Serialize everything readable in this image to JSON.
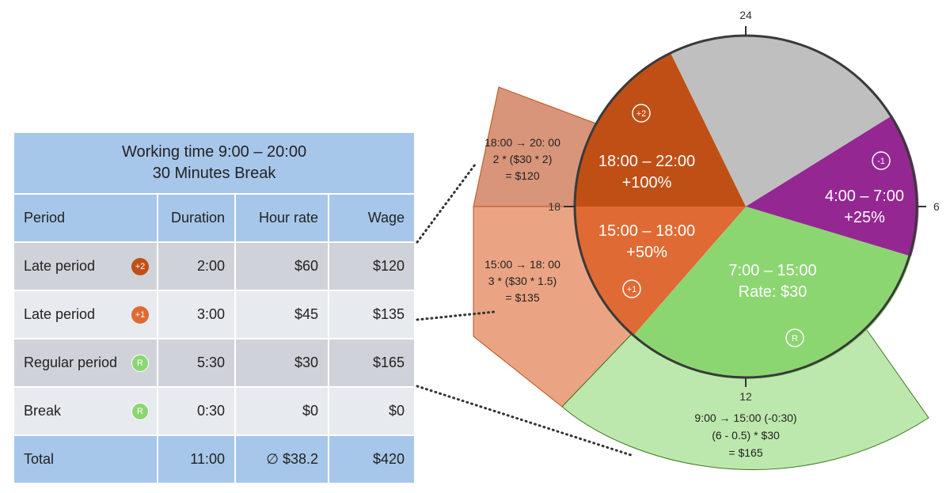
{
  "table": {
    "title_line1": "Working time 9:00 – 20:00",
    "title_line2": "30 Minutes Break",
    "headers": {
      "period": "Period",
      "duration": "Duration",
      "rate": "Hour rate",
      "wage": "Wage"
    },
    "rows": [
      {
        "period": "Late period",
        "badge": "+2",
        "duration": "2:00",
        "rate": "$60",
        "wage": "$120"
      },
      {
        "period": "Late period",
        "badge": "+1",
        "duration": "3:00",
        "rate": "$45",
        "wage": "$135"
      },
      {
        "period": "Regular period",
        "badge": "R",
        "duration": "5:30",
        "rate": "$30",
        "wage": "$165"
      },
      {
        "period": "Break",
        "badge": "R",
        "duration": "0:30",
        "rate": "$0",
        "wage": "$0"
      }
    ],
    "total": {
      "label": "Total",
      "duration": "11:00",
      "rate": "∅ $38.2",
      "wage": "$420"
    }
  },
  "clock": {
    "ticks": {
      "top": "24",
      "right": "6",
      "bottom": "12",
      "left": "18"
    },
    "segments": {
      "late2": {
        "line1": "18:00 – 22:00",
        "line2": "+100%",
        "badge": "+2"
      },
      "late1": {
        "line1": "15:00 – 18:00",
        "line2": "+50%",
        "badge": "+1"
      },
      "regular": {
        "line1": "7:00 – 15:00",
        "line2": "Rate: $30",
        "badge": "R"
      },
      "early": {
        "line1": "4:00 – 7:00",
        "line2": "+25%",
        "badge": "-1"
      }
    },
    "callouts": {
      "late2": {
        "line1": "18:00 → 20: 00",
        "line2": "2 * ($30 * 2)",
        "line3": "= $120"
      },
      "late1": {
        "line1": "15:00 → 18: 00",
        "line2": "3 * ($30 * 1.5)",
        "line3": "= $135"
      },
      "regular": {
        "line1": "9:00 → 15:00 (-0:30)",
        "line2": "(6 - 0.5) * $30",
        "line3": "= $165"
      }
    }
  },
  "colors": {
    "table_blue": "#a7c7ea",
    "row_dark": "#cfd3d9",
    "row_light": "#e7eaee",
    "late2": "#c04f15",
    "late1": "#e06a33",
    "regular": "#8cd672",
    "early": "#952793",
    "night": "#bfbfbf",
    "callout_late2": "#d8957a",
    "callout_late1": "#eaa484",
    "callout_regular": "#bde8ad"
  }
}
